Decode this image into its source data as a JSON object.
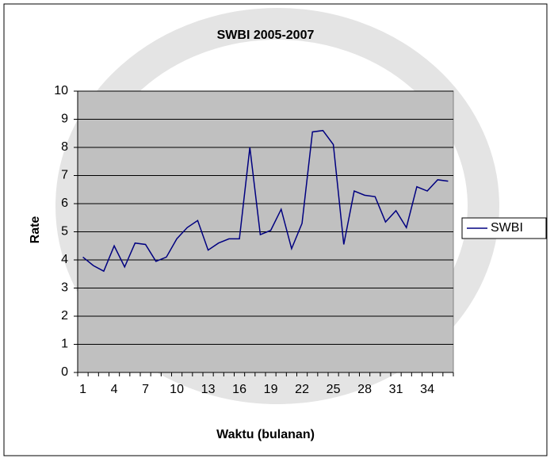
{
  "chart_data": {
    "type": "line",
    "title": "SWBI 2005-2007",
    "x_label": "Waktu (bulanan)",
    "y_label": "Rate",
    "categories": [
      1,
      null,
      null,
      4,
      null,
      null,
      7,
      null,
      null,
      10,
      null,
      null,
      13,
      null,
      null,
      16,
      null,
      null,
      19,
      null,
      null,
      22,
      null,
      null,
      25,
      null,
      null,
      28,
      null,
      null,
      31,
      null,
      null,
      34,
      null,
      null
    ],
    "series": [
      {
        "name": "SWBI",
        "color": "#000080",
        "values": [
          4.1,
          3.8,
          3.6,
          4.5,
          3.75,
          4.6,
          4.55,
          3.95,
          4.1,
          4.75,
          5.15,
          5.4,
          4.35,
          4.6,
          4.75,
          4.75,
          8.0,
          4.9,
          5.05,
          5.8,
          4.4,
          5.3,
          8.55,
          8.6,
          8.1,
          4.55,
          6.45,
          6.3,
          6.25,
          5.35,
          5.75,
          5.15,
          6.6,
          6.45,
          6.85,
          6.8
        ]
      }
    ],
    "ylim": [
      0,
      10
    ],
    "yticks": [
      0,
      1,
      2,
      3,
      4,
      5,
      6,
      7,
      8,
      9,
      10
    ],
    "grid": true,
    "plot_background": "#c0c0c0",
    "legend": "right"
  }
}
